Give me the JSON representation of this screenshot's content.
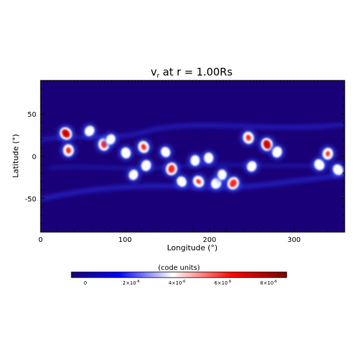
{
  "chart_data": {
    "type": "heatmap",
    "title": "v",
    "title_sub": "r",
    "title_rest": " at r = 1.00Rs",
    "xlabel": "Longitude (°)",
    "ylabel": "Latitude (°)",
    "xlim": [
      0,
      360
    ],
    "ylim": [
      -90,
      90
    ],
    "x_ticks": [
      0,
      100,
      200,
      300
    ],
    "y_ticks": [
      -50,
      0,
      50
    ],
    "background_color": "#1a0078",
    "colorbar": {
      "label": "(code units)",
      "range": [
        0,
        9.4e-06
      ],
      "ticks": [
        {
          "value": 0,
          "base": "0",
          "exp": ""
        },
        {
          "value": 2e-06,
          "base": "2×10",
          "exp": "-6"
        },
        {
          "value": 4e-06,
          "base": "4×10",
          "exp": "-6"
        },
        {
          "value": 6e-06,
          "base": "6×10",
          "exp": "-6"
        },
        {
          "value": 8e-06,
          "base": "8×10",
          "exp": "-6"
        }
      ],
      "colors": [
        "#1a0078",
        "#0000ff",
        "#ffffff",
        "#ff0000",
        "#7a0000"
      ]
    },
    "hotspots": [
      {
        "lon": 30,
        "lat": 27,
        "value": 8e-06
      },
      {
        "lon": 33,
        "lat": 7,
        "value": 6.5e-06
      },
      {
        "lon": 58,
        "lat": 30,
        "value": 4e-06
      },
      {
        "lon": 75,
        "lat": 14,
        "value": 7e-06
      },
      {
        "lon": 83,
        "lat": 20,
        "value": 3.5e-06
      },
      {
        "lon": 101,
        "lat": 4,
        "value": 4.5e-06
      },
      {
        "lon": 110,
        "lat": -22,
        "value": 3.5e-06
      },
      {
        "lon": 122,
        "lat": 11,
        "value": 6.5e-06
      },
      {
        "lon": 125,
        "lat": -11,
        "value": 4.5e-06
      },
      {
        "lon": 148,
        "lat": 5,
        "value": 3.5e-06
      },
      {
        "lon": 155,
        "lat": -15,
        "value": 7.5e-06
      },
      {
        "lon": 167,
        "lat": -30,
        "value": 4e-06
      },
      {
        "lon": 183,
        "lat": -5,
        "value": 4e-06
      },
      {
        "lon": 187,
        "lat": -30,
        "value": 6e-06
      },
      {
        "lon": 199,
        "lat": -2,
        "value": 4e-06
      },
      {
        "lon": 208,
        "lat": -32,
        "value": 5e-06
      },
      {
        "lon": 215,
        "lat": -22,
        "value": 3.5e-06
      },
      {
        "lon": 228,
        "lat": -32,
        "value": 7.5e-06
      },
      {
        "lon": 246,
        "lat": 22,
        "value": 6.5e-06
      },
      {
        "lon": 250,
        "lat": -12,
        "value": 4e-06
      },
      {
        "lon": 268,
        "lat": 14,
        "value": 8e-06
      },
      {
        "lon": 280,
        "lat": 5,
        "value": 4.5e-06
      },
      {
        "lon": 330,
        "lat": -10,
        "value": 5e-06
      },
      {
        "lon": 340,
        "lat": 3,
        "value": 6e-06
      },
      {
        "lon": 352,
        "lat": -16,
        "value": 4.5e-06
      }
    ]
  }
}
